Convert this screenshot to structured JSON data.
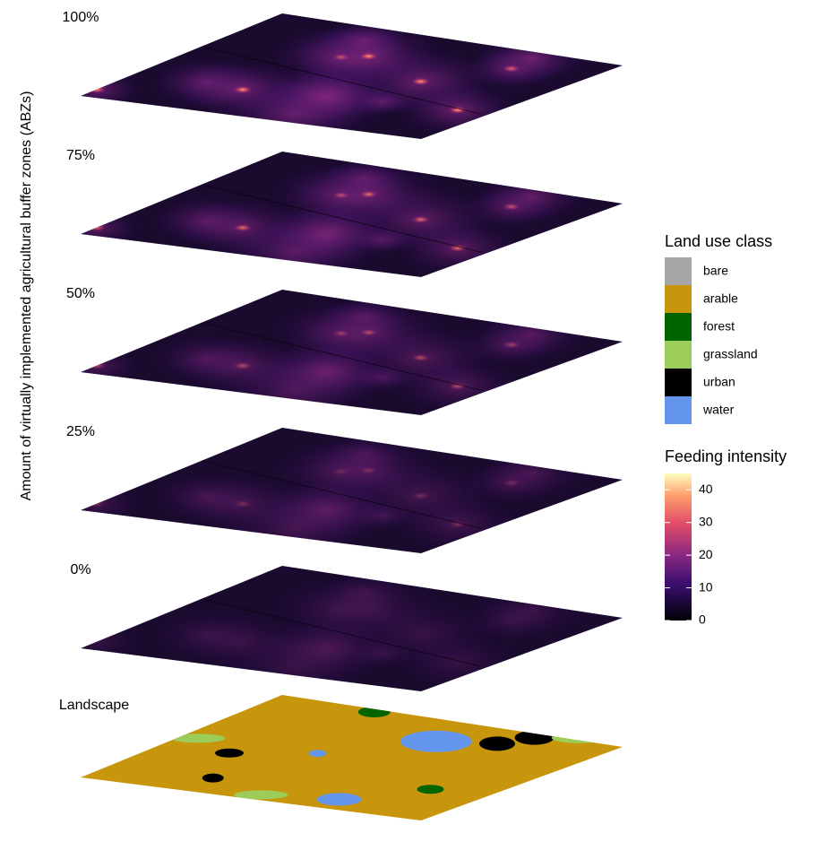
{
  "y_axis_label": "Amount of virtually implemented agricultural buffer zones (ABZs)",
  "layers": [
    "100%",
    "75%",
    "50%",
    "25%",
    "0%"
  ],
  "landscape_label": "Landscape",
  "land_use_legend": {
    "title": "Land use class",
    "classes": [
      {
        "name": "bare",
        "color": "#a6a6a6"
      },
      {
        "name": "arable",
        "color": "#c8960c"
      },
      {
        "name": "forest",
        "color": "#006400"
      },
      {
        "name": "grassland",
        "color": "#9ccc5a"
      },
      {
        "name": "urban",
        "color": "#000000"
      },
      {
        "name": "water",
        "color": "#6495ed"
      }
    ]
  },
  "feeding_legend": {
    "title": "Feeding intensity",
    "limits": [
      0,
      45
    ],
    "ticks": [
      0,
      10,
      20,
      30,
      40
    ]
  }
}
